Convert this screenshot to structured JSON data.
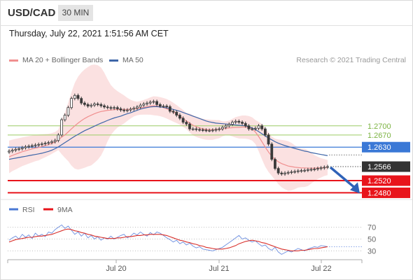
{
  "header": {
    "pair": "USD/CAD",
    "timeframe": "30 MIN"
  },
  "date_line": "Thursday, July 22, 2021 1:51:56 AM CET",
  "legend": {
    "ma20_label": "MA 20 + Bollinger Bands",
    "ma50_label": "MA 50",
    "credit": "Research © 2021 Trading Central",
    "rsi_label": "RSI",
    "rsi_ma_label": "9MA"
  },
  "colors": {
    "ma20": "#f08f8f",
    "ma50": "#3e66a8",
    "bands": "#fbdede",
    "candle": "#3a3a3a",
    "resistance": "#9ccc65",
    "pivot": "#3a78d6",
    "support": "#e8141b",
    "arrow": "#2f62b8",
    "current": "#333333"
  },
  "chart_data": [
    {
      "type": "candlestick",
      "title": "USD/CAD 30 MIN",
      "x_tick_labels": [
        "Jul 20",
        "Jul 21",
        "Jul 22"
      ],
      "ylim": [
        1.2458,
        1.2895
      ],
      "levels": [
        {
          "label": "1.2700",
          "value": 1.27,
          "kind": "resistance"
        },
        {
          "label": "1.2670",
          "value": 1.267,
          "kind": "resistance"
        },
        {
          "label": "1.2630",
          "value": 1.263,
          "kind": "pivot"
        },
        {
          "label": "1.2566",
          "value": 1.2566,
          "kind": "current"
        },
        {
          "label": "1.2520",
          "value": 1.252,
          "kind": "support"
        },
        {
          "label": "1.2480",
          "value": 1.248,
          "kind": "support"
        }
      ],
      "close": [
        1.2617,
        1.262,
        1.2623,
        1.2625,
        1.2628,
        1.2631,
        1.2633,
        1.2635,
        1.2637,
        1.2639,
        1.2641,
        1.2643,
        1.2645,
        1.2648,
        1.2652,
        1.267,
        1.272,
        1.2735,
        1.276,
        1.279,
        1.28,
        1.279,
        1.2775,
        1.277,
        1.2765,
        1.2768,
        1.2772,
        1.277,
        1.2766,
        1.2762,
        1.276,
        1.2758,
        1.276,
        1.2756,
        1.2752,
        1.275,
        1.2752,
        1.2755,
        1.2758,
        1.2762,
        1.2768,
        1.2772,
        1.2775,
        1.2778,
        1.278,
        1.277,
        1.2765,
        1.2765,
        1.2763,
        1.2748,
        1.2745,
        1.2735,
        1.2725,
        1.2712,
        1.2706,
        1.269,
        1.269,
        1.2688,
        1.2687,
        1.2686,
        1.2685,
        1.2685,
        1.2686,
        1.2688,
        1.269,
        1.2695,
        1.27,
        1.2705,
        1.2712,
        1.2715,
        1.2712,
        1.2708,
        1.27,
        1.269,
        1.269,
        1.2692,
        1.27,
        1.269,
        1.267,
        1.264,
        1.259,
        1.256,
        1.2545,
        1.2542,
        1.2545,
        1.2547,
        1.2549,
        1.255,
        1.2552,
        1.2553,
        1.2554,
        1.2556,
        1.2557,
        1.2558,
        1.256,
        1.2562,
        1.2564,
        1.2566
      ],
      "ma20": [
        1.2598,
        1.2603,
        1.2607,
        1.2611,
        1.2615,
        1.2618,
        1.2621,
        1.2624,
        1.2627,
        1.2629,
        1.2632,
        1.2635,
        1.2638,
        1.2642,
        1.2647,
        1.2654,
        1.2663,
        1.267,
        1.268,
        1.269,
        1.27,
        1.2709,
        1.2717,
        1.2724,
        1.273,
        1.2735,
        1.274,
        1.2744,
        1.2747,
        1.2749,
        1.2751,
        1.2752,
        1.2753,
        1.2754,
        1.2754,
        1.2754,
        1.2754,
        1.2755,
        1.2756,
        1.2757,
        1.2759,
        1.2761,
        1.2763,
        1.2765,
        1.2766,
        1.2765,
        1.2763,
        1.276,
        1.2756,
        1.2751,
        1.2745,
        1.2739,
        1.2732,
        1.2724,
        1.2716,
        1.2709,
        1.2702,
        1.2697,
        1.2693,
        1.269,
        1.2688,
        1.2687,
        1.2687,
        1.2688,
        1.2689,
        1.269,
        1.2692,
        1.2693,
        1.2694,
        1.2695,
        1.2695,
        1.2696,
        1.2696,
        1.2694,
        1.269,
        1.268,
        1.2665,
        1.2648,
        1.263,
        1.2614,
        1.26,
        1.259,
        1.2582,
        1.2576,
        1.2572,
        1.2568,
        1.2566,
        1.2564,
        1.2563,
        1.2562,
        1.2562,
        1.2561,
        1.2561,
        1.2561,
        1.2562,
        1.2562,
        1.2563,
        1.2563
      ],
      "ma50": [
        1.259,
        1.2592,
        1.2594,
        1.2596,
        1.2598,
        1.26,
        1.2602,
        1.2604,
        1.2606,
        1.2608,
        1.261,
        1.2613,
        1.2616,
        1.262,
        1.2625,
        1.2631,
        1.2638,
        1.2645,
        1.2652,
        1.2659,
        1.2666,
        1.2672,
        1.2678,
        1.2684,
        1.2689,
        1.2694,
        1.2699,
        1.2704,
        1.2709,
        1.2713,
        1.2718,
        1.2722,
        1.2726,
        1.2729,
        1.2732,
        1.2736,
        1.274,
        1.2743,
        1.2747,
        1.2751,
        1.2755,
        1.2758,
        1.276,
        1.2762,
        1.2763,
        1.2763,
        1.2762,
        1.2761,
        1.2759,
        1.2757,
        1.2754,
        1.2751,
        1.2748,
        1.2744,
        1.274,
        1.2736,
        1.2732,
        1.2728,
        1.2724,
        1.272,
        1.2716,
        1.2713,
        1.2711,
        1.2709,
        1.2708,
        1.2707,
        1.2706,
        1.2705,
        1.2704,
        1.2703,
        1.2702,
        1.2701,
        1.27,
        1.2697,
        1.2693,
        1.2688,
        1.2681,
        1.2674,
        1.2667,
        1.266,
        1.2654,
        1.2648,
        1.2643,
        1.2639,
        1.2635,
        1.2632,
        1.2629,
        1.2626,
        1.2623,
        1.262,
        1.2617,
        1.2615,
        1.2612,
        1.261,
        1.2608,
        1.2606,
        1.2604,
        1.2602
      ]
    },
    {
      "type": "line",
      "title": "RSI",
      "series_names": [
        "RSI",
        "9MA"
      ],
      "y_tick_labels": [
        "70",
        "50",
        "30"
      ],
      "ylim": [
        15,
        85
      ],
      "rsi": [
        48,
        52,
        55,
        50,
        58,
        53,
        57,
        51,
        60,
        55,
        58,
        54,
        62,
        60,
        66,
        70,
        74,
        68,
        72,
        65,
        58,
        62,
        55,
        60,
        52,
        56,
        50,
        54,
        48,
        52,
        50,
        55,
        50,
        53,
        56,
        58,
        52,
        55,
        60,
        57,
        62,
        58,
        55,
        61,
        57,
        62,
        60,
        56,
        52,
        49,
        45,
        48,
        42,
        45,
        40,
        43,
        38,
        35,
        37,
        33,
        32,
        31,
        30,
        32,
        34,
        36,
        40,
        44,
        48,
        52,
        56,
        50,
        52,
        48,
        45,
        47,
        42,
        38,
        40,
        34,
        31,
        36,
        28,
        24,
        27,
        30,
        28,
        31,
        34,
        32,
        30,
        33,
        35,
        37,
        36,
        39,
        38,
        37
      ],
      "rsi_ma": [
        45,
        47,
        49,
        50,
        51,
        52,
        53,
        53,
        54,
        55,
        55,
        56,
        57,
        58,
        60,
        62,
        64,
        66,
        67,
        66,
        64,
        63,
        61,
        60,
        58,
        57,
        55,
        54,
        53,
        52,
        51,
        51,
        51,
        52,
        52,
        53,
        54,
        54,
        55,
        56,
        56,
        57,
        57,
        58,
        58,
        58,
        58,
        57,
        56,
        54,
        52,
        50,
        48,
        47,
        45,
        44,
        42,
        41,
        39,
        38,
        36,
        35,
        34,
        33,
        33,
        33,
        34,
        35,
        37,
        39,
        42,
        44,
        46,
        47,
        48,
        47,
        46,
        44,
        43,
        41,
        39,
        37,
        35,
        33,
        32,
        31,
        30,
        30,
        30,
        31,
        31,
        32,
        33,
        34,
        34,
        35,
        36,
        37
      ]
    }
  ]
}
